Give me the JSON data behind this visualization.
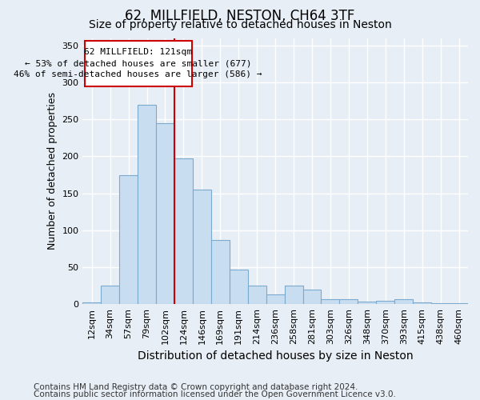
{
  "title1": "62, MILLFIELD, NESTON, CH64 3TF",
  "title2": "Size of property relative to detached houses in Neston",
  "xlabel": "Distribution of detached houses by size in Neston",
  "ylabel": "Number of detached properties",
  "categories": [
    "12sqm",
    "34sqm",
    "57sqm",
    "79sqm",
    "102sqm",
    "124sqm",
    "146sqm",
    "169sqm",
    "191sqm",
    "214sqm",
    "236sqm",
    "258sqm",
    "281sqm",
    "303sqm",
    "326sqm",
    "348sqm",
    "370sqm",
    "393sqm",
    "415sqm",
    "438sqm",
    "460sqm"
  ],
  "values": [
    2,
    25,
    175,
    270,
    245,
    197,
    155,
    87,
    47,
    25,
    13,
    25,
    20,
    7,
    7,
    4,
    5,
    7,
    2,
    1,
    1
  ],
  "bar_color": "#c9ddf0",
  "bar_edge_color": "#7aabcf",
  "vline_color": "#cc0000",
  "vline_x_index": 5,
  "annotation_line1": "62 MILLFIELD: 121sqm",
  "annotation_line2": "← 53% of detached houses are smaller (677)",
  "annotation_line3": "46% of semi-detached houses are larger (586) →",
  "annotation_box_facecolor": "#ffffff",
  "annotation_box_edgecolor": "#cc0000",
  "ylim": [
    0,
    360
  ],
  "yticks": [
    0,
    50,
    100,
    150,
    200,
    250,
    300,
    350
  ],
  "footer1": "Contains HM Land Registry data © Crown copyright and database right 2024.",
  "footer2": "Contains public sector information licensed under the Open Government Licence v3.0.",
  "background_color": "#e8eef5",
  "plot_bg_color": "#e8eef5",
  "grid_color": "#ffffff",
  "title1_fontsize": 12,
  "title2_fontsize": 10,
  "tick_fontsize": 8,
  "ylabel_fontsize": 9,
  "xlabel_fontsize": 10,
  "annotation_fontsize": 8,
  "footer_fontsize": 7.5
}
